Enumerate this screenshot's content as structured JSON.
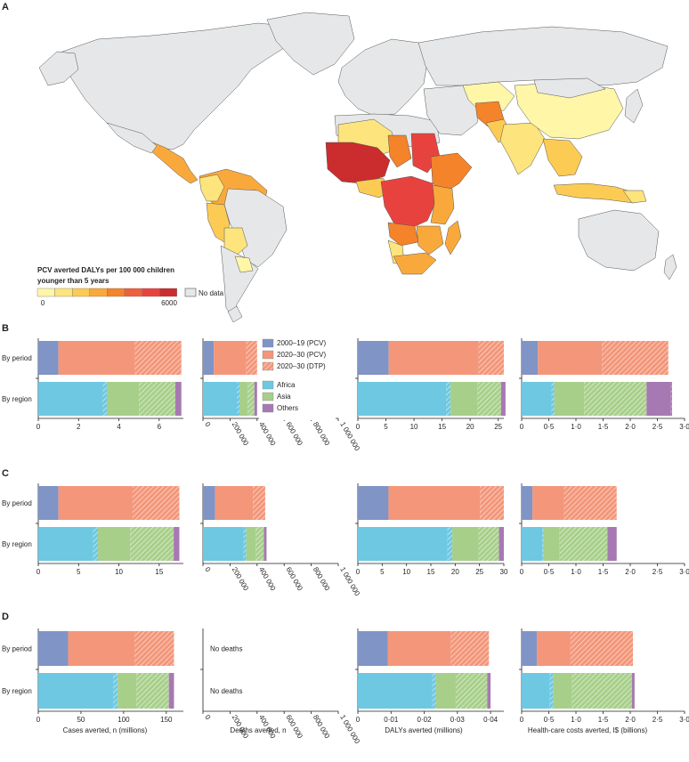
{
  "colors": {
    "pcv_2000_19": "#8094c6",
    "pcv_2020_30": "#f3967a",
    "dtp_2020_30": "#f6ab92",
    "africa": "#6ec8e2",
    "asia": "#a7cf8a",
    "others": "#a779b2",
    "nodata": "#e6e7e8",
    "map_scale": [
      "#fff6a8",
      "#fde47c",
      "#fccb54",
      "#f9a93b",
      "#f4832a",
      "#ef5f3c",
      "#e8423f",
      "#cb2c2d"
    ]
  },
  "panel_a": {
    "letter": "A",
    "legend_title_1": "PCV averted DALYs per 100 000 children",
    "legend_title_2": "younger than 5 years",
    "legend_min": "0",
    "legend_max": "6000",
    "no_data": "No data"
  },
  "row_labels": [
    "By period",
    "By region"
  ],
  "series_legend": [
    {
      "name": "2000–19 (PCV)",
      "color": "#8094c6"
    },
    {
      "name": "2020–30 (PCV)",
      "color": "#f3967a"
    },
    {
      "name": "2020–30 (DTP)",
      "color": "#f6ab92",
      "hatch": true
    },
    {
      "name": "Africa",
      "color": "#6ec8e2"
    },
    {
      "name": "Asia",
      "color": "#a7cf8a"
    },
    {
      "name": "Others",
      "color": "#a779b2"
    }
  ],
  "x_labels": [
    "Cases averted, n (millions)",
    "Deaths averted, n",
    "DALYs averted (millions)",
    "Health-care costs averted, I$ (billions)"
  ],
  "no_deaths": "No deaths",
  "chart_data": [
    {
      "type": "bar",
      "panel": "B",
      "metric": "Cases averted, n (millions)",
      "xlim": [
        0,
        7.2
      ],
      "ticks": [
        "0",
        "2",
        "4",
        "6"
      ],
      "tick_values": [
        0,
        2,
        4,
        6
      ],
      "rotate": false,
      "by_period": [
        1.0,
        3.8,
        2.3
      ],
      "by_region": {
        "africa": [
          3.2,
          0.2
        ],
        "asia": [
          1.6,
          1.8
        ],
        "others": [
          0.3,
          0
        ]
      }
    },
    {
      "type": "bar",
      "panel": "B",
      "metric": "Deaths averted, n",
      "xlim": [
        0,
        1000000
      ],
      "ticks": [
        "0",
        "200 000",
        "400 000",
        "600 000",
        "800 000",
        "1 000 000"
      ],
      "tick_values": [
        0,
        200000,
        400000,
        600000,
        800000,
        1000000
      ],
      "rotate": true,
      "by_period": [
        80000,
        240000,
        80000
      ],
      "by_region": {
        "africa": [
          250000,
          20000
        ],
        "asia": [
          60000,
          50000
        ],
        "others": [
          20000,
          0
        ]
      }
    },
    {
      "type": "bar",
      "panel": "B",
      "metric": "DALYs averted (millions)",
      "xlim": [
        0,
        26
      ],
      "ticks": [
        "0",
        "5",
        "10",
        "15",
        "20",
        "25"
      ],
      "tick_values": [
        0,
        5,
        10,
        15,
        20,
        25
      ],
      "rotate": false,
      "by_period": [
        5.5,
        16,
        4.5
      ],
      "by_region": {
        "africa": [
          15.7,
          0.8
        ],
        "asia": [
          4.8,
          4.2
        ],
        "others": [
          0.8,
          0
        ]
      }
    },
    {
      "type": "bar",
      "panel": "B",
      "metric": "Health-care costs averted, I$ (billions)",
      "xlim": [
        0,
        3
      ],
      "ticks": [
        "0",
        "0·5",
        "1·0",
        "1·5",
        "2·0",
        "2·5",
        "3·0"
      ],
      "tick_values": [
        0,
        0.5,
        1,
        1.5,
        2,
        2.5,
        3
      ],
      "rotate": false,
      "by_period": [
        0.3,
        1.18,
        1.22
      ],
      "by_region": {
        "africa": [
          0.55,
          0.05
        ],
        "asia": [
          0.55,
          1.15
        ],
        "others": [
          0.45,
          0.02
        ]
      }
    },
    {
      "type": "bar",
      "panel": "C",
      "metric": "Cases averted, n (millions)",
      "xlim": [
        0,
        18
      ],
      "ticks": [
        "0",
        "5",
        "10",
        "15"
      ],
      "tick_values": [
        0,
        5,
        10,
        15
      ],
      "rotate": false,
      "by_period": [
        2.5,
        9.2,
        5.8
      ],
      "by_region": {
        "africa": [
          6.8,
          0.6
        ],
        "asia": [
          4.0,
          5.4
        ],
        "others": [
          0.7,
          0
        ]
      }
    },
    {
      "type": "bar",
      "panel": "C",
      "metric": "Deaths averted, n",
      "xlim": [
        0,
        1000000
      ],
      "ticks": [
        "0",
        "200 000",
        "400 000",
        "600 000",
        "800 000",
        "1 000 000"
      ],
      "tick_values": [
        0,
        200000,
        400000,
        600000,
        800000,
        1000000
      ],
      "rotate": true,
      "by_period": [
        90000,
        280000,
        90000
      ],
      "by_region": {
        "africa": [
          300000,
          20000
        ],
        "asia": [
          70000,
          60000
        ],
        "others": [
          20000,
          0
        ]
      }
    },
    {
      "type": "bar",
      "panel": "C",
      "metric": "DALYs averted (millions)",
      "xlim": [
        0,
        30
      ],
      "ticks": [
        "0",
        "5",
        "10",
        "15",
        "20",
        "25",
        "30"
      ],
      "tick_values": [
        0,
        5,
        10,
        15,
        20,
        25,
        30
      ],
      "rotate": false,
      "by_period": [
        6.3,
        18.8,
        4.9
      ],
      "by_region": {
        "africa": [
          18.4,
          1.0
        ],
        "asia": [
          5.4,
          4.2
        ],
        "others": [
          1.0,
          0
        ]
      }
    },
    {
      "type": "bar",
      "panel": "C",
      "metric": "Health-care costs averted, I$ (billions)",
      "xlim": [
        0,
        3
      ],
      "ticks": [
        "0",
        "0·5",
        "1·0",
        "1·5",
        "2·0",
        "2·5",
        "3·0"
      ],
      "tick_values": [
        0,
        0.5,
        1,
        1.5,
        2,
        2.5,
        3
      ],
      "rotate": false,
      "by_period": [
        0.2,
        0.58,
        0.97
      ],
      "by_region": {
        "africa": [
          0.38,
          0.02
        ],
        "asia": [
          0.3,
          0.88
        ],
        "others": [
          0.17,
          0
        ]
      }
    },
    {
      "type": "bar",
      "panel": "D",
      "metric": "Cases averted, n (millions)",
      "xlim": [
        0,
        170
      ],
      "ticks": [
        "0",
        "50",
        "100",
        "150"
      ],
      "tick_values": [
        0,
        50,
        100,
        150
      ],
      "rotate": false,
      "by_period": [
        35,
        78,
        46
      ],
      "by_region": {
        "africa": [
          88,
          5
        ],
        "asia": [
          22,
          38
        ],
        "others": [
          6,
          0
        ]
      }
    },
    {
      "type": "bar",
      "panel": "D",
      "metric": "Deaths averted, n",
      "xlim": [
        0,
        1000000
      ],
      "ticks": [
        "0",
        "200 000",
        "400 000",
        "600 000",
        "800 000",
        "1 000 000"
      ],
      "tick_values": [
        0,
        200000,
        400000,
        600000,
        800000,
        1000000
      ],
      "rotate": true,
      "no_deaths": true
    },
    {
      "type": "bar",
      "panel": "D",
      "metric": "DALYs averted (millions)",
      "xlim": [
        0,
        0.044
      ],
      "ticks": [
        "0",
        "0·01",
        "0·02",
        "0·03",
        "0·04"
      ],
      "tick_values": [
        0,
        0.01,
        0.02,
        0.03,
        0.04
      ],
      "rotate": false,
      "by_period": [
        0.009,
        0.019,
        0.0115
      ],
      "by_region": {
        "africa": [
          0.0225,
          0.001
        ],
        "asia": [
          0.006,
          0.0095
        ],
        "others": [
          0.001,
          0
        ]
      }
    },
    {
      "type": "bar",
      "panel": "D",
      "metric": "Health-care costs averted, I$ (billions)",
      "xlim": [
        0,
        3
      ],
      "ticks": [
        "0",
        "0·5",
        "1·0",
        "1·5",
        "2·0",
        "2·5",
        "3·0"
      ],
      "tick_values": [
        0,
        0.5,
        1,
        1.5,
        2,
        2.5,
        3
      ],
      "rotate": false,
      "by_period": [
        0.28,
        0.62,
        1.15
      ],
      "by_region": {
        "africa": [
          0.52,
          0.06
        ],
        "asia": [
          0.35,
          1.1
        ],
        "others": [
          0.05,
          0
        ]
      }
    }
  ]
}
